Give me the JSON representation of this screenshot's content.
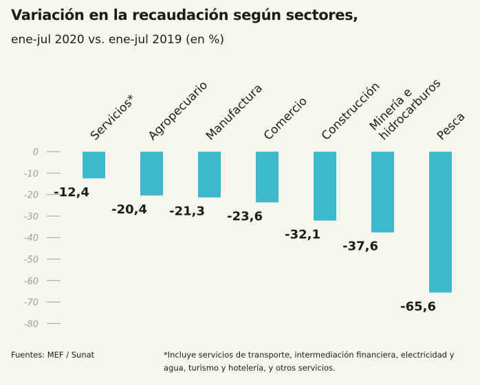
{
  "header": {
    "title": "Variación en la recaudación según sectores,",
    "subtitle": "ene-jul 2020 vs. ene-jul 2019 (en %)"
  },
  "chart_data": {
    "type": "bar",
    "categories": [
      "Servicios*",
      "Agropecuario",
      "Manufactura",
      "Comercio",
      "Construcción",
      "Minería e hidrocarburos",
      "Pesca"
    ],
    "category_lines": [
      [
        "Servicios*"
      ],
      [
        "Agropecuario"
      ],
      [
        "Manufactura"
      ],
      [
        "Comercio"
      ],
      [
        "Construcción"
      ],
      [
        "Minería e",
        "hidrocarburos"
      ],
      [
        "Pesca"
      ]
    ],
    "values": [
      -12.4,
      -20.4,
      -21.3,
      -23.6,
      -32.1,
      -37.6,
      -65.6
    ],
    "value_labels": [
      "-12,4",
      "-20,4",
      "-21,3",
      "-23,6",
      "-32,1",
      "-37,6",
      "-65,6"
    ],
    "yticks": [
      0,
      -10,
      -20,
      -30,
      -40,
      -50,
      -60,
      -70,
      -80
    ],
    "ylim": [
      -80,
      0
    ],
    "bar_color": "#3fb9c9",
    "tick_color": "#9aa0a0",
    "grid": false
  },
  "footer": {
    "sources": "Fuentes: MEF / Sunat",
    "note": "*Incluye servicios de transporte, intermediación financiera, electricidad y agua, turismo y hotelería, y otros servicios."
  }
}
